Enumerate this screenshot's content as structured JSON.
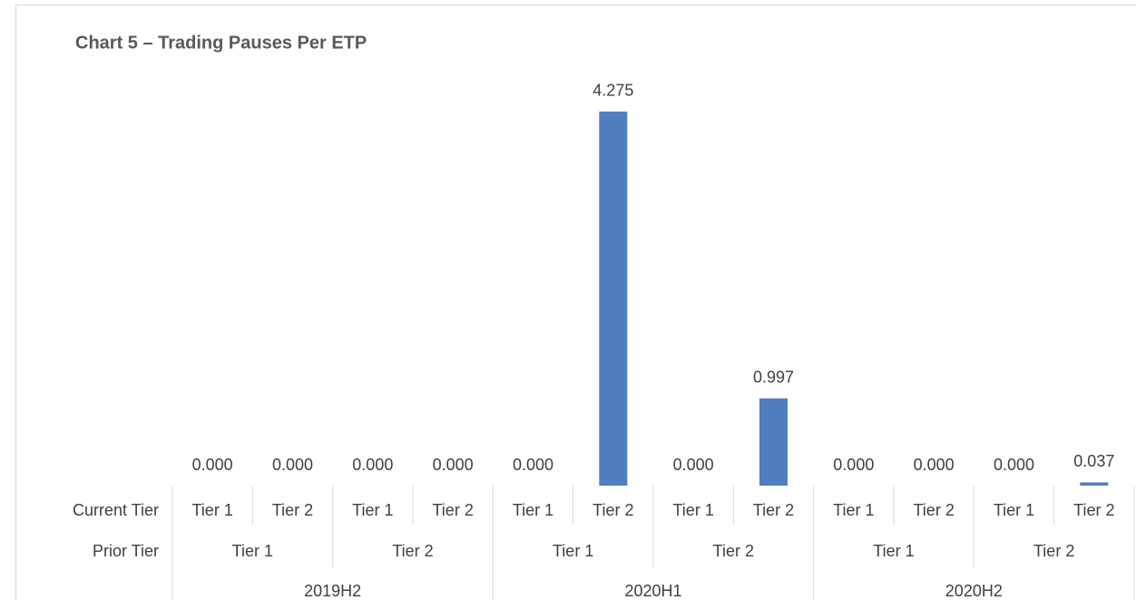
{
  "chart_data": {
    "type": "bar",
    "title": "Chart 5 – Trading Pauses Per ETP",
    "categories": [
      "Tier 1",
      "Tier 2",
      "Tier 1",
      "Tier 2",
      "Tier 1",
      "Tier 2",
      "Tier 1",
      "Tier 2",
      "Tier 1",
      "Tier 2",
      "Tier 1",
      "Tier 2"
    ],
    "prior_tiers": [
      "Tier 1",
      "Tier 2",
      "Tier 1",
      "Tier 2",
      "Tier 1",
      "Tier 2"
    ],
    "periods": [
      "2019H2",
      "2020H1",
      "2020H2"
    ],
    "level_labels": [
      "Current Tier",
      "Prior Tier"
    ],
    "values": [
      0,
      0,
      0,
      0,
      0,
      4.275,
      0,
      0.997,
      0,
      0,
      0,
      0.037
    ],
    "value_labels": [
      "0.000",
      "0.000",
      "0.000",
      "0.000",
      "0.000",
      "4.275",
      "0.000",
      "0.997",
      "0.000",
      "0.000",
      "0.000",
      "0.037"
    ],
    "color": "#4f7fbf",
    "ylim": [
      0,
      5
    ]
  }
}
